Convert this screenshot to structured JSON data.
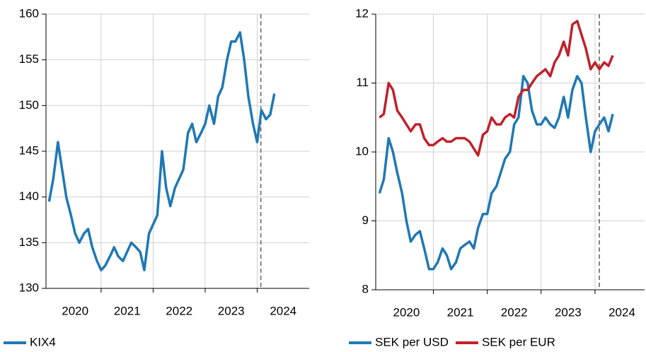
{
  "chart_data": [
    {
      "type": "line",
      "x": [
        2020.0,
        2020.08,
        2020.17,
        2020.25,
        2020.33,
        2020.42,
        2020.5,
        2020.58,
        2020.67,
        2020.75,
        2020.83,
        2020.92,
        2021.0,
        2021.08,
        2021.17,
        2021.25,
        2021.33,
        2021.42,
        2021.5,
        2021.58,
        2021.67,
        2021.75,
        2021.83,
        2021.92,
        2022.0,
        2022.08,
        2022.17,
        2022.25,
        2022.33,
        2022.42,
        2022.5,
        2022.58,
        2022.67,
        2022.75,
        2022.83,
        2022.92,
        2023.0,
        2023.08,
        2023.17,
        2023.25,
        2023.33,
        2023.42,
        2023.5,
        2023.58,
        2023.67,
        2023.75,
        2023.83,
        2023.92,
        2024.0,
        2024.08,
        2024.17,
        2024.25,
        2024.33
      ],
      "series": [
        {
          "name": "KIX4",
          "color": "#1f78b4",
          "values": [
            139.5,
            142,
            146,
            143,
            140,
            138,
            136,
            135,
            136,
            136.5,
            134.5,
            133,
            132,
            132.5,
            133.5,
            134.5,
            133.5,
            133,
            134,
            135,
            134.5,
            134,
            132,
            136,
            137,
            138,
            145,
            141,
            139,
            141,
            142,
            143,
            147,
            148,
            146,
            147,
            148,
            150,
            148,
            151,
            152,
            155,
            157,
            157,
            158,
            155,
            151,
            148,
            146,
            149.5,
            148.5,
            149,
            151.3
          ]
        }
      ],
      "xlim": [
        2019.94,
        2025.0
      ],
      "xticks": [
        {
          "value": 2020.5,
          "label": "2020"
        },
        {
          "value": 2021.5,
          "label": "2021"
        },
        {
          "value": 2022.5,
          "label": "2022"
        },
        {
          "value": 2023.5,
          "label": "2023"
        },
        {
          "value": 2024.5,
          "label": "2024"
        }
      ],
      "xgrid": [
        2021,
        2022,
        2023,
        2024
      ],
      "ylim": [
        130,
        160
      ],
      "yticks": [
        130,
        135,
        140,
        145,
        150,
        155,
        160
      ],
      "vline": 2024.07,
      "grid": true
    },
    {
      "type": "line",
      "x": [
        2020.0,
        2020.08,
        2020.17,
        2020.25,
        2020.33,
        2020.42,
        2020.5,
        2020.58,
        2020.67,
        2020.75,
        2020.83,
        2020.92,
        2021.0,
        2021.08,
        2021.17,
        2021.25,
        2021.33,
        2021.42,
        2021.5,
        2021.58,
        2021.67,
        2021.75,
        2021.83,
        2021.92,
        2022.0,
        2022.08,
        2022.17,
        2022.25,
        2022.33,
        2022.42,
        2022.5,
        2022.58,
        2022.67,
        2022.75,
        2022.83,
        2022.92,
        2023.0,
        2023.08,
        2023.17,
        2023.25,
        2023.33,
        2023.42,
        2023.5,
        2023.58,
        2023.67,
        2023.75,
        2023.83,
        2023.92,
        2024.0,
        2024.08,
        2024.17,
        2024.25,
        2024.33
      ],
      "series": [
        {
          "name": "SEK per USD",
          "color": "#1f78b4",
          "values": [
            9.4,
            9.6,
            10.2,
            10.0,
            9.7,
            9.4,
            9.0,
            8.7,
            8.8,
            8.85,
            8.6,
            8.3,
            8.3,
            8.4,
            8.6,
            8.5,
            8.3,
            8.4,
            8.6,
            8.65,
            8.7,
            8.6,
            8.9,
            9.1,
            9.1,
            9.4,
            9.5,
            9.7,
            9.9,
            10.0,
            10.4,
            10.5,
            11.1,
            11.0,
            10.6,
            10.4,
            10.4,
            10.5,
            10.4,
            10.35,
            10.5,
            10.8,
            10.5,
            10.9,
            11.1,
            11.0,
            10.5,
            10.0,
            10.3,
            10.4,
            10.5,
            10.3,
            10.55
          ]
        },
        {
          "name": "SEK per EUR",
          "color": "#c0202a",
          "values": [
            10.5,
            10.55,
            11.0,
            10.9,
            10.6,
            10.5,
            10.4,
            10.3,
            10.4,
            10.4,
            10.2,
            10.1,
            10.1,
            10.15,
            10.2,
            10.15,
            10.15,
            10.2,
            10.2,
            10.2,
            10.15,
            10.05,
            9.95,
            10.25,
            10.3,
            10.5,
            10.4,
            10.4,
            10.5,
            10.55,
            10.5,
            10.8,
            10.9,
            10.9,
            11.0,
            11.1,
            11.15,
            11.2,
            11.1,
            11.3,
            11.4,
            11.6,
            11.4,
            11.85,
            11.9,
            11.7,
            11.5,
            11.2,
            11.3,
            11.2,
            11.3,
            11.25,
            11.4
          ]
        }
      ],
      "xlim": [
        2019.93,
        2024.92
      ],
      "xticks": [
        {
          "value": 2020.5,
          "label": "2020"
        },
        {
          "value": 2021.5,
          "label": "2021"
        },
        {
          "value": 2022.5,
          "label": "2022"
        },
        {
          "value": 2023.5,
          "label": "2023"
        },
        {
          "value": 2024.5,
          "label": "2024"
        }
      ],
      "xgrid": [
        2021,
        2022,
        2023,
        2024
      ],
      "ylim": [
        8,
        12
      ],
      "yticks": [
        8,
        9,
        10,
        11,
        12
      ],
      "vline": 2024.08,
      "grid": true
    }
  ]
}
